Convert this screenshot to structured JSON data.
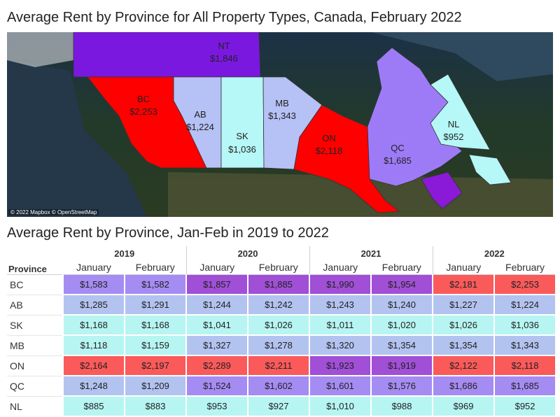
{
  "map": {
    "title": "Average Rent by Province for All Property Types, Canada, February 2022",
    "attribution": "© 2022 Mapbox © OpenStreetMap",
    "provinces": [
      {
        "code": "NT",
        "value": "$1,846",
        "color": "#7b18e0"
      },
      {
        "code": "BC",
        "value": "$2,253",
        "color": "#ff0000"
      },
      {
        "code": "AB",
        "value": "$1,224",
        "color": "#b6c1f5"
      },
      {
        "code": "SK",
        "value": "$1,036",
        "color": "#b6f7f7"
      },
      {
        "code": "MB",
        "value": "$1,343",
        "color": "#b6c1f5"
      },
      {
        "code": "ON",
        "value": "$2,118",
        "color": "#ff0000"
      },
      {
        "code": "QC",
        "value": "$1,685",
        "color": "#9e7bf6"
      },
      {
        "code": "NL",
        "value": "$952",
        "color": "#b6f7f7"
      }
    ]
  },
  "table": {
    "title": "Average Rent by Province, Jan-Feb in 2019 to 2022",
    "province_header": "Province",
    "years": [
      "2019",
      "2020",
      "2021",
      "2022"
    ],
    "months": [
      "January",
      "February"
    ],
    "rows": [
      {
        "province": "BC",
        "values": [
          "$1,583",
          "$1,582",
          "$1,857",
          "$1,885",
          "$1,990",
          "$1,954",
          "$2,181",
          "$2,253"
        ],
        "colors": [
          "#a58cf2",
          "#a58cf2",
          "#a04fd6",
          "#a04fd6",
          "#a04fd6",
          "#a04fd6",
          "#fb5a5a",
          "#fb5a5a"
        ]
      },
      {
        "province": "AB",
        "values": [
          "$1,285",
          "$1,291",
          "$1,244",
          "$1,242",
          "$1,243",
          "$1,240",
          "$1,227",
          "$1,224"
        ],
        "colors": [
          "#b3c3f0",
          "#b3c3f0",
          "#b3c3f0",
          "#b3c3f0",
          "#b3c3f0",
          "#b3c3f0",
          "#b3c3f0",
          "#b3c3f0"
        ]
      },
      {
        "province": "SK",
        "values": [
          "$1,168",
          "$1,168",
          "$1,041",
          "$1,026",
          "$1,011",
          "$1,020",
          "$1,026",
          "$1,036"
        ],
        "colors": [
          "#b6f5f2",
          "#b6f5f2",
          "#b6f5f2",
          "#b6f5f2",
          "#b6f5f2",
          "#b6f5f2",
          "#b6f5f2",
          "#b6f5f2"
        ]
      },
      {
        "province": "MB",
        "values": [
          "$1,118",
          "$1,159",
          "$1,327",
          "$1,278",
          "$1,320",
          "$1,354",
          "$1,354",
          "$1,343"
        ],
        "colors": [
          "#b6f5f2",
          "#b6f5f2",
          "#b3c3f0",
          "#b3c3f0",
          "#b3c3f0",
          "#b3c3f0",
          "#b3c3f0",
          "#b3c3f0"
        ]
      },
      {
        "province": "ON",
        "values": [
          "$2,164",
          "$2,197",
          "$2,289",
          "$2,211",
          "$1,923",
          "$1,919",
          "$2,122",
          "$2,118"
        ],
        "colors": [
          "#fb5a5a",
          "#fb5a5a",
          "#fb5a5a",
          "#fb5a5a",
          "#a04fd6",
          "#a04fd6",
          "#fb5a5a",
          "#fb5a5a"
        ]
      },
      {
        "province": "QC",
        "values": [
          "$1,248",
          "$1,209",
          "$1,524",
          "$1,602",
          "$1,601",
          "$1,576",
          "$1,686",
          "$1,685"
        ],
        "colors": [
          "#b3c3f0",
          "#b3c3f0",
          "#a58cf2",
          "#a58cf2",
          "#a58cf2",
          "#a58cf2",
          "#a58cf2",
          "#a58cf2"
        ]
      },
      {
        "province": "NL",
        "values": [
          "$885",
          "$883",
          "$953",
          "$927",
          "$1,010",
          "$988",
          "$969",
          "$952"
        ],
        "colors": [
          "#b6f5f2",
          "#b6f5f2",
          "#b6f5f2",
          "#b6f5f2",
          "#b6f5f2",
          "#b6f5f2",
          "#b6f5f2",
          "#b6f5f2"
        ]
      }
    ]
  }
}
